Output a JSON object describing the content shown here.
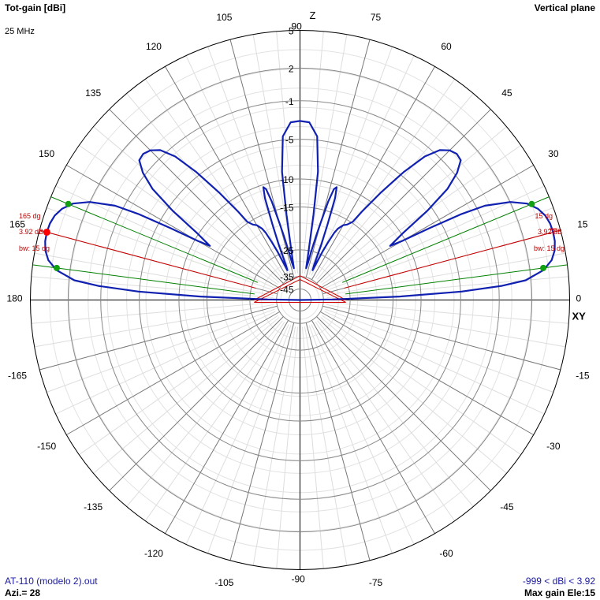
{
  "header": {
    "title": "Tot-gain [dBi]",
    "frequency": "25 MHz",
    "plane": "Vertical plane"
  },
  "footer": {
    "file": "AT-110 (modelo 2).out",
    "azimuth": "Azi.= 28",
    "range": "-999 < dBi < 3.92",
    "max_gain": "Max gain Ele:15"
  },
  "chart_data": {
    "type": "polar",
    "angle_unit": "degrees",
    "angle_labels": [
      {
        "angle": 0,
        "text": "0"
      },
      {
        "angle": 15,
        "text": "15"
      },
      {
        "angle": 30,
        "text": "30"
      },
      {
        "angle": 45,
        "text": "45"
      },
      {
        "angle": 60,
        "text": "60"
      },
      {
        "angle": 75,
        "text": "75"
      },
      {
        "angle": 90,
        "text": "90"
      },
      {
        "angle": 105,
        "text": "105"
      },
      {
        "angle": 120,
        "text": "120"
      },
      {
        "angle": 135,
        "text": "135"
      },
      {
        "angle": 150,
        "text": "150"
      },
      {
        "angle": 165,
        "text": "165"
      },
      {
        "angle": 180,
        "text": "180"
      },
      {
        "angle": -15,
        "text": "-15"
      },
      {
        "angle": -30,
        "text": "-30"
      },
      {
        "angle": -45,
        "text": "-45"
      },
      {
        "angle": -60,
        "text": "-60"
      },
      {
        "angle": -75,
        "text": "-75"
      },
      {
        "angle": -90,
        "text": "-90"
      },
      {
        "angle": -105,
        "text": "-105"
      },
      {
        "angle": -120,
        "text": "-120"
      },
      {
        "angle": -135,
        "text": "-135"
      },
      {
        "angle": -150,
        "text": "-150"
      },
      {
        "angle": -165,
        "text": "-165"
      }
    ],
    "axis_names": {
      "vertical": "Z",
      "horizontal": "XY"
    },
    "radial_levels": [
      {
        "frac": 1.0,
        "label": "5"
      },
      {
        "frac": 0.86,
        "label": "2"
      },
      {
        "frac": 0.739,
        "label": "-1"
      },
      {
        "frac": 0.596,
        "label": "-5"
      },
      {
        "frac": 0.449,
        "label": "-10"
      },
      {
        "frac": 0.345,
        "label": "-15"
      },
      {
        "frac": 0.186,
        "label": "-25"
      },
      {
        "frac": 0.087,
        "label": "-35"
      },
      {
        "frac": 0.041,
        "label": "-45"
      }
    ],
    "series": [
      {
        "color": "#1020b0",
        "points": [
          [
            0,
            0.0
          ],
          [
            1,
            0.12
          ],
          [
            2,
            0.37
          ],
          [
            3,
            0.6
          ],
          [
            4,
            0.75
          ],
          [
            5,
            0.84
          ],
          [
            7,
            0.91
          ],
          [
            9,
            0.945
          ],
          [
            11,
            0.962
          ],
          [
            13,
            0.97
          ],
          [
            15,
            0.972
          ],
          [
            17,
            0.97
          ],
          [
            19,
            0.962
          ],
          [
            21,
            0.945
          ],
          [
            23,
            0.915
          ],
          [
            25,
            0.86
          ],
          [
            27,
            0.77
          ],
          [
            28,
            0.68
          ],
          [
            29,
            0.55
          ],
          [
            30,
            0.44
          ],
          [
            31,
            0.39
          ],
          [
            33,
            0.455
          ],
          [
            35,
            0.575
          ],
          [
            37,
            0.685
          ],
          [
            39,
            0.75
          ],
          [
            41,
            0.79
          ],
          [
            43,
            0.795
          ],
          [
            45,
            0.785
          ],
          [
            47,
            0.76
          ],
          [
            49,
            0.705
          ],
          [
            51,
            0.61
          ],
          [
            53,
            0.5
          ],
          [
            55,
            0.4
          ],
          [
            56,
            0.35
          ],
          [
            58,
            0.33
          ],
          [
            60,
            0.32
          ],
          [
            62,
            0.3
          ],
          [
            63,
            0.28
          ],
          [
            64,
            0.24
          ],
          [
            65,
            0.2
          ],
          [
            67,
            0.12
          ],
          [
            68,
            0.14
          ],
          [
            69,
            0.22
          ],
          [
            70,
            0.3
          ],
          [
            71,
            0.4
          ],
          [
            72,
            0.44
          ],
          [
            73,
            0.43
          ],
          [
            74,
            0.38
          ],
          [
            75,
            0.3
          ],
          [
            76,
            0.24
          ],
          [
            77,
            0.18
          ],
          [
            78,
            0.14
          ],
          [
            79,
            0.12
          ],
          [
            80,
            0.18
          ],
          [
            81,
            0.32
          ],
          [
            82,
            0.48
          ],
          [
            84,
            0.61
          ],
          [
            87,
            0.66
          ],
          [
            90,
            0.664
          ],
          [
            93,
            0.66
          ],
          [
            96,
            0.61
          ],
          [
            98,
            0.48
          ],
          [
            99,
            0.32
          ],
          [
            100,
            0.18
          ],
          [
            101,
            0.12
          ],
          [
            102,
            0.14
          ],
          [
            103,
            0.18
          ],
          [
            104,
            0.24
          ],
          [
            105,
            0.3
          ],
          [
            106,
            0.38
          ],
          [
            107,
            0.43
          ],
          [
            108,
            0.44
          ],
          [
            109,
            0.4
          ],
          [
            110,
            0.3
          ],
          [
            111,
            0.22
          ],
          [
            112,
            0.14
          ],
          [
            113,
            0.12
          ],
          [
            115,
            0.2
          ],
          [
            116,
            0.24
          ],
          [
            117,
            0.28
          ],
          [
            118,
            0.3
          ],
          [
            120,
            0.32
          ],
          [
            122,
            0.33
          ],
          [
            124,
            0.35
          ],
          [
            125,
            0.4
          ],
          [
            127,
            0.5
          ],
          [
            129,
            0.61
          ],
          [
            131,
            0.705
          ],
          [
            133,
            0.76
          ],
          [
            135,
            0.785
          ],
          [
            137,
            0.795
          ],
          [
            139,
            0.79
          ],
          [
            141,
            0.75
          ],
          [
            143,
            0.685
          ],
          [
            145,
            0.575
          ],
          [
            147,
            0.455
          ],
          [
            149,
            0.39
          ],
          [
            150,
            0.44
          ],
          [
            151,
            0.55
          ],
          [
            152,
            0.68
          ],
          [
            153,
            0.77
          ],
          [
            155,
            0.86
          ],
          [
            157,
            0.915
          ],
          [
            159,
            0.945
          ],
          [
            161,
            0.962
          ],
          [
            163,
            0.97
          ],
          [
            165,
            0.972
          ],
          [
            167,
            0.97
          ],
          [
            169,
            0.962
          ],
          [
            171,
            0.945
          ],
          [
            173,
            0.91
          ],
          [
            175,
            0.84
          ],
          [
            176,
            0.75
          ],
          [
            177,
            0.6
          ],
          [
            178,
            0.37
          ],
          [
            179,
            0.12
          ],
          [
            180,
            0.0
          ]
        ]
      }
    ],
    "markers": {
      "max": [
        {
          "angle": 15,
          "frac": 0.972
        },
        {
          "angle": 165,
          "frac": 0.972
        }
      ],
      "half_power": [
        {
          "angle": 7.5,
          "frac": 0.91
        },
        {
          "angle": 22.5,
          "frac": 0.93
        },
        {
          "angle": 157.5,
          "frac": 0.93
        },
        {
          "angle": 172.5,
          "frac": 0.91
        }
      ]
    },
    "annotations": {
      "right": {
        "angle_label": "15 dg",
        "gain_label": "3.92 dB",
        "bw_label": "bw: 15 dg"
      },
      "left": {
        "angle_label": "165 dg",
        "gain_label": "3.92 dB",
        "bw_label": "bw: 15 dg"
      }
    },
    "colors": {
      "pattern": "#1020b0",
      "max_line": "#d00000",
      "bw_line": "#008000",
      "grid": "#000000"
    }
  }
}
